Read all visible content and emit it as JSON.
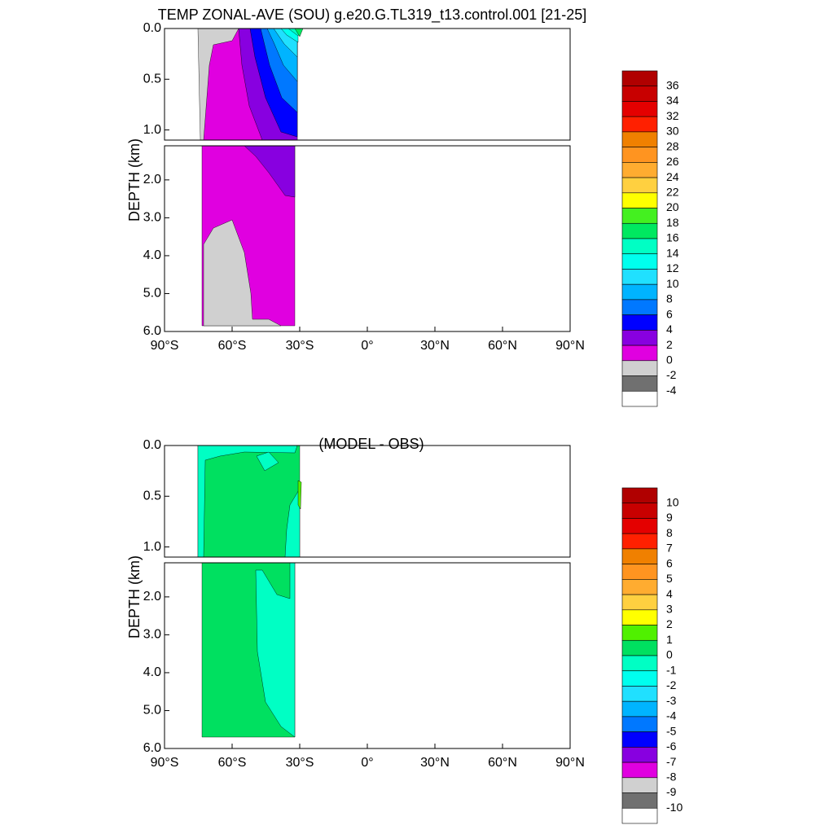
{
  "chart_data": [
    {
      "type": "contour",
      "title": "TEMP ZONAL-AVE (SOU) g.e20.G.TL319_t13.control.001 [21-25]",
      "y_label": "DEPTH (km)",
      "xlim": [
        -90,
        90
      ],
      "xticks": [
        {
          "value": -90,
          "label": "90°S"
        },
        {
          "value": -60,
          "label": "60°S"
        },
        {
          "value": -30,
          "label": "30°S"
        },
        {
          "value": 0,
          "label": "0°"
        },
        {
          "value": 30,
          "label": "30°N"
        },
        {
          "value": 60,
          "label": "60°N"
        },
        {
          "value": 90,
          "label": "90°N"
        }
      ],
      "ylim": [
        0,
        6
      ],
      "y_split": 1.1,
      "yticks": [
        {
          "value": 0,
          "label": "0.0"
        },
        0.5,
        {
          "value": 1,
          "label": "1.0"
        },
        {
          "value": 2,
          "label": "2.0"
        },
        {
          "value": 3,
          "label": "3.0"
        },
        {
          "value": 4,
          "label": "4.0"
        },
        {
          "value": 5,
          "label": "5.0"
        },
        {
          "value": 6,
          "label": "6.0"
        }
      ],
      "colorbar": {
        "levels": [
          36,
          34,
          32,
          30,
          28,
          26,
          24,
          22,
          20,
          18,
          16,
          14,
          12,
          10,
          8,
          6,
          4,
          2,
          0,
          -2,
          -4
        ],
        "colors": [
          "#b00000",
          "#c80000",
          "#e40000",
          "#ff2000",
          "#f08000",
          "#ff9420",
          "#ffac30",
          "#ffd040",
          "#ffff00",
          "#44f020",
          "#00e860",
          "#00ffc4",
          "#00ffee",
          "#20e0ff",
          "#00b4ff",
          "#0078ff",
          "#0000ff",
          "#8800e0",
          "#e000e0",
          "#d0d0d0",
          "#707070",
          "#ffffff"
        ]
      }
    },
    {
      "type": "contour",
      "title": "(MODEL - OBS)",
      "y_label": "DEPTH (km)",
      "xlim": [
        -90,
        90
      ],
      "xticks": [
        {
          "value": -90,
          "label": "90°S"
        },
        {
          "value": -60,
          "label": "60°S"
        },
        {
          "value": -30,
          "label": "30°S"
        },
        {
          "value": 0,
          "label": "0°"
        },
        {
          "value": 30,
          "label": "30°N"
        },
        {
          "value": 60,
          "label": "60°N"
        },
        {
          "value": 90,
          "label": "90°N"
        }
      ],
      "ylim": [
        0,
        6
      ],
      "y_split": 1.1,
      "yticks": [
        {
          "value": 0,
          "label": "0.0"
        },
        0.5,
        {
          "value": 1,
          "label": "1.0"
        },
        {
          "value": 2,
          "label": "2.0"
        },
        {
          "value": 3,
          "label": "3.0"
        },
        {
          "value": 4,
          "label": "4.0"
        },
        {
          "value": 5,
          "label": "5.0"
        },
        {
          "value": 6,
          "label": "6.0"
        }
      ],
      "colorbar": {
        "levels": [
          10,
          9,
          8,
          7,
          6,
          5,
          4,
          3,
          2,
          1,
          0,
          -1,
          -2,
          -3,
          -4,
          -5,
          -6,
          -7,
          -8,
          -9,
          -10
        ],
        "colors": [
          "#b00000",
          "#c80000",
          "#e40000",
          "#ff2000",
          "#f08000",
          "#ff9420",
          "#ffac30",
          "#ffd040",
          "#ffff00",
          "#50f000",
          "#00e060",
          "#00ffc4",
          "#00ffee",
          "#20e0ff",
          "#00b4ff",
          "#0078ff",
          "#0000ff",
          "#8800e0",
          "#e000e0",
          "#d0d0d0",
          "#707070",
          "#ffffff"
        ]
      }
    }
  ]
}
